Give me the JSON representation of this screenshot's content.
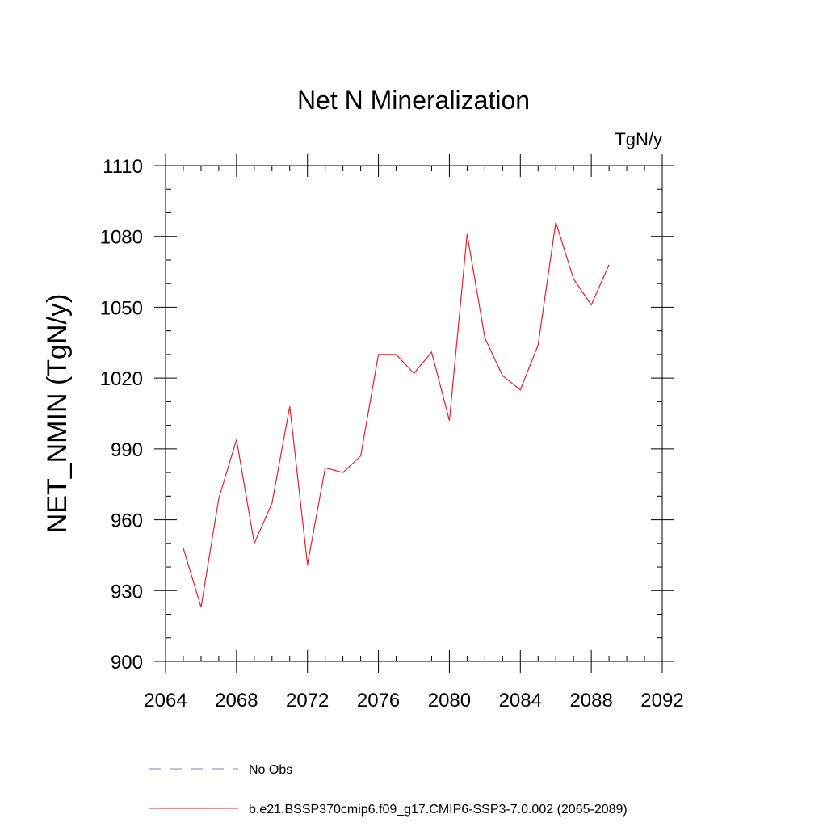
{
  "chart_data": {
    "type": "line",
    "title": "Net N Mineralization",
    "units": "TgN/y",
    "ylabel": "NET_NMIN  (TgN/y)",
    "xlabel": "",
    "xlim": [
      2064,
      2092
    ],
    "ylim": [
      900,
      1110
    ],
    "x_ticks": [
      2064,
      2068,
      2072,
      2076,
      2080,
      2084,
      2088,
      2092
    ],
    "y_ticks": [
      900,
      930,
      960,
      990,
      1020,
      1050,
      1080,
      1110
    ],
    "x_minor_step": 1,
    "y_minor_step": 10,
    "grid": false,
    "legend_position": "bottom",
    "series": [
      {
        "name": "b.e21.BSSP370cmip6.f09_g17.CMIP6-SSP3-7.0.002 (2065-2089)",
        "color": "#e8202a",
        "style": "solid",
        "x": [
          2065,
          2066,
          2067,
          2068,
          2069,
          2070,
          2071,
          2072,
          2073,
          2074,
          2075,
          2076,
          2077,
          2078,
          2079,
          2080,
          2081,
          2082,
          2083,
          2084,
          2085,
          2086,
          2087,
          2088,
          2089
        ],
        "y": [
          948,
          923,
          969,
          994,
          950,
          967,
          1008,
          941,
          982,
          980,
          987,
          1030,
          1030,
          1022,
          1031,
          1002,
          1081,
          1037,
          1021,
          1015,
          1034,
          1086,
          1062,
          1051,
          1068
        ]
      },
      {
        "name": "No Obs",
        "color": "#7f7fd0",
        "style": "dashed",
        "x": [],
        "y": []
      }
    ]
  }
}
